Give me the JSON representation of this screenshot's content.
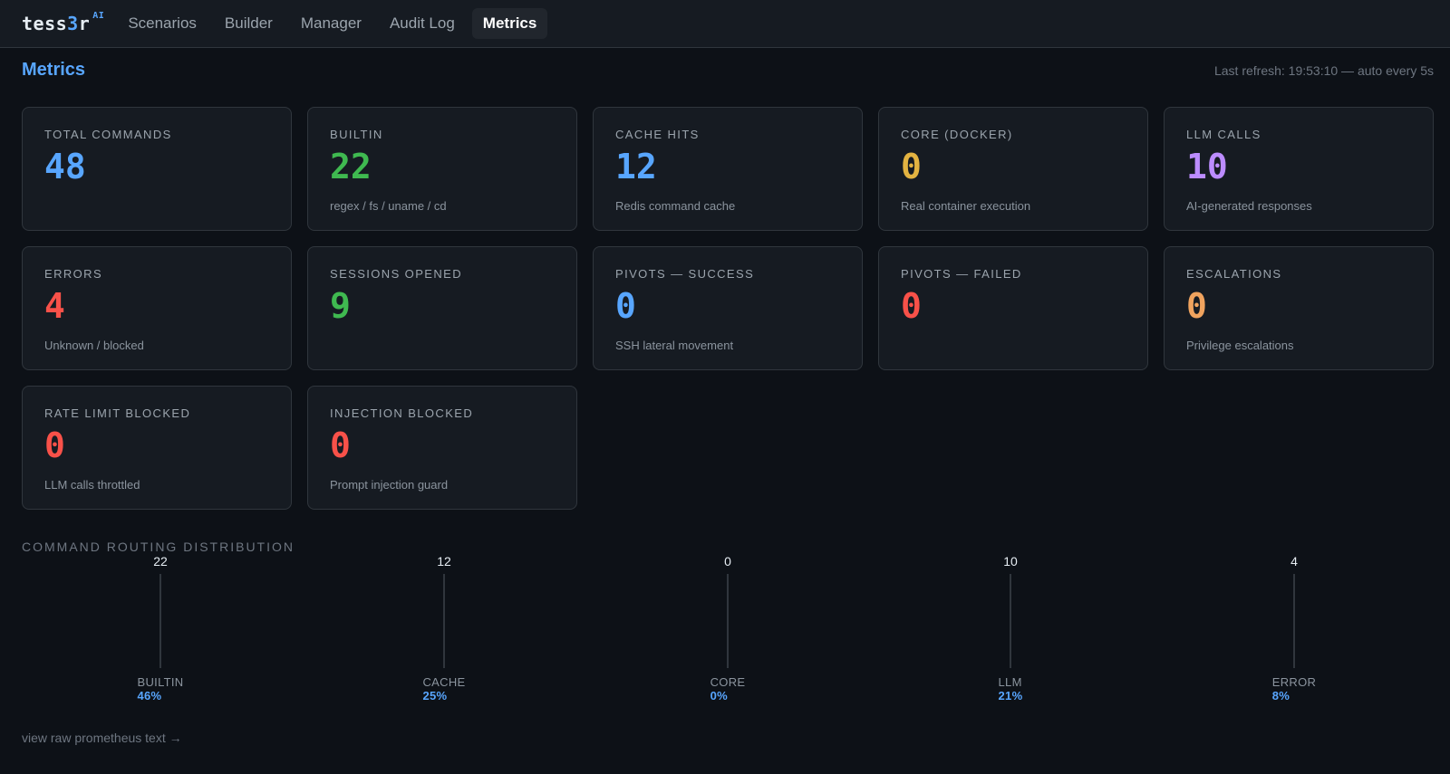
{
  "app": {
    "logo_main": "tess",
    "logo_three": "3",
    "logo_tail": "r",
    "logo_sup": "AI"
  },
  "nav": {
    "items": [
      {
        "label": "Scenarios",
        "active": false
      },
      {
        "label": "Builder",
        "active": false
      },
      {
        "label": "Manager",
        "active": false
      },
      {
        "label": "Audit Log",
        "active": false
      },
      {
        "label": "Metrics",
        "active": true
      }
    ]
  },
  "header": {
    "title": "Metrics",
    "refresh": "Last refresh: 19:53:10 — auto every 5s"
  },
  "cards": [
    {
      "label": "TOTAL COMMANDS",
      "value": "48",
      "sub": "",
      "color": "#58a6ff"
    },
    {
      "label": "BUILTIN",
      "value": "22",
      "sub": "regex / fs / uname / cd",
      "color": "#3fb950"
    },
    {
      "label": "CACHE HITS",
      "value": "12",
      "sub": "Redis command cache",
      "color": "#58a6ff"
    },
    {
      "label": "CORE (DOCKER)",
      "value": "0",
      "sub": "Real container execution",
      "color": "#e3b341"
    },
    {
      "label": "LLM CALLS",
      "value": "10",
      "sub": "AI-generated responses",
      "color": "#bc8cff"
    },
    {
      "label": "ERRORS",
      "value": "4",
      "sub": "Unknown / blocked",
      "color": "#f85149"
    },
    {
      "label": "SESSIONS OPENED",
      "value": "9",
      "sub": "",
      "color": "#3fb950"
    },
    {
      "label": "PIVOTS — SUCCESS",
      "value": "0",
      "sub": "SSH lateral movement",
      "color": "#58a6ff"
    },
    {
      "label": "PIVOTS — FAILED",
      "value": "0",
      "sub": "",
      "color": "#f85149"
    },
    {
      "label": "ESCALATIONS",
      "value": "0",
      "sub": "Privilege escalations",
      "color": "#f0a35e"
    },
    {
      "label": "RATE LIMIT BLOCKED",
      "value": "0",
      "sub": "LLM calls throttled",
      "color": "#f85149"
    },
    {
      "label": "INJECTION BLOCKED",
      "value": "0",
      "sub": "Prompt injection guard",
      "color": "#f85149"
    }
  ],
  "distribution": {
    "title": "COMMAND ROUTING DISTRIBUTION",
    "items": [
      {
        "name": "BUILTIN",
        "count": "22",
        "pct": "46%"
      },
      {
        "name": "CACHE",
        "count": "12",
        "pct": "25%"
      },
      {
        "name": "CORE",
        "count": "0",
        "pct": "0%"
      },
      {
        "name": "LLM",
        "count": "10",
        "pct": "21%"
      },
      {
        "name": "ERROR",
        "count": "4",
        "pct": "8%"
      }
    ]
  },
  "footer": {
    "raw_link": "view raw prometheus text →"
  }
}
